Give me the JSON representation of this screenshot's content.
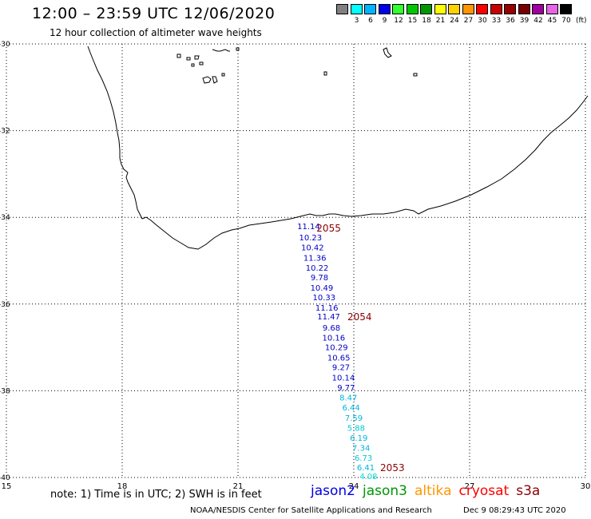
{
  "header": {
    "title": "12:00 – 23:59 UTC 12/06/2020",
    "subtitle": "12 hour collection of altimeter wave heights"
  },
  "legend": {
    "unit": "(ft)",
    "bins": [
      {
        "label": "",
        "color": "#808080"
      },
      {
        "label": "3",
        "color": "#00ffff"
      },
      {
        "label": "6",
        "color": "#00b4ff"
      },
      {
        "label": "9",
        "color": "#0000e6"
      },
      {
        "label": "12",
        "color": "#32ff32"
      },
      {
        "label": "15",
        "color": "#00c800"
      },
      {
        "label": "18",
        "color": "#009600"
      },
      {
        "label": "21",
        "color": "#ffff00"
      },
      {
        "label": "24",
        "color": "#ffd200"
      },
      {
        "label": "27",
        "color": "#ff9600"
      },
      {
        "label": "30",
        "color": "#ff0000"
      },
      {
        "label": "33",
        "color": "#c80000"
      },
      {
        "label": "36",
        "color": "#960000"
      },
      {
        "label": "39",
        "color": "#780000"
      },
      {
        "label": "42",
        "color": "#a000a0"
      },
      {
        "label": "45",
        "color": "#e664e6"
      },
      {
        "label": "70",
        "color": "#000000"
      }
    ]
  },
  "map": {
    "lon_range": [
      15,
      30
    ],
    "lat_range": [
      -40,
      -30
    ],
    "lon_ticks": [
      {
        "lon": 15,
        "label": "15"
      },
      {
        "lon": 18,
        "label": "18"
      },
      {
        "lon": 21,
        "label": "21"
      },
      {
        "lon": 24,
        "label": "24"
      },
      {
        "lon": 27,
        "label": "27"
      },
      {
        "lon": 30,
        "label": "30"
      }
    ],
    "lat_ticks": [
      {
        "lat": -30,
        "label": "-30"
      },
      {
        "lat": -32,
        "label": "-32"
      },
      {
        "lat": -34,
        "label": "-34"
      },
      {
        "lat": -36,
        "label": "-36"
      },
      {
        "lat": -38,
        "label": "-38"
      },
      {
        "lat": -40,
        "label": "-40"
      }
    ],
    "coastline_color": "#000000",
    "grid": "dotted",
    "track": [
      {
        "lon": 22.83,
        "lat": -34.2,
        "value": "11.14",
        "color": "#0000c8"
      },
      {
        "lon": 22.88,
        "lat": -34.46,
        "value": "10.23",
        "color": "#0000c8"
      },
      {
        "lon": 22.93,
        "lat": -34.69,
        "value": "10.42",
        "color": "#0000c8"
      },
      {
        "lon": 22.99,
        "lat": -34.93,
        "value": "11.36",
        "color": "#0000c8"
      },
      {
        "lon": 23.05,
        "lat": -35.16,
        "value": "10.22",
        "color": "#0000c8"
      },
      {
        "lon": 23.11,
        "lat": -35.38,
        "value": "9.78",
        "color": "#0000c8"
      },
      {
        "lon": 23.17,
        "lat": -35.62,
        "value": "10.49",
        "color": "#0000c8"
      },
      {
        "lon": 23.23,
        "lat": -35.84,
        "value": "10.33",
        "color": "#0000c8"
      },
      {
        "lon": 23.3,
        "lat": -36.08,
        "value": "11.16",
        "color": "#0000c8"
      },
      {
        "lon": 23.35,
        "lat": -36.28,
        "value": "11.47",
        "color": "#0000c8"
      },
      {
        "lon": 23.42,
        "lat": -36.54,
        "value": "9.68",
        "color": "#0000c8"
      },
      {
        "lon": 23.48,
        "lat": -36.77,
        "value": "10.16",
        "color": "#0000c8"
      },
      {
        "lon": 23.55,
        "lat": -36.99,
        "value": "10.29",
        "color": "#0000c8"
      },
      {
        "lon": 23.61,
        "lat": -37.23,
        "value": "10.65",
        "color": "#0000c8"
      },
      {
        "lon": 23.67,
        "lat": -37.45,
        "value": "9.27",
        "color": "#0000c8"
      },
      {
        "lon": 23.73,
        "lat": -37.69,
        "value": "10.14",
        "color": "#0000c8"
      },
      {
        "lon": 23.8,
        "lat": -37.92,
        "value": "9.77",
        "color": "#0000c8"
      },
      {
        "lon": 23.86,
        "lat": -38.15,
        "value": "8.47",
        "color": "#00b4dc"
      },
      {
        "lon": 23.93,
        "lat": -38.38,
        "value": "6.44",
        "color": "#00b4dc"
      },
      {
        "lon": 24.0,
        "lat": -38.62,
        "value": "7.59",
        "color": "#00b4dc"
      },
      {
        "lon": 24.06,
        "lat": -38.85,
        "value": "5.88",
        "color": "#00c8dc"
      },
      {
        "lon": 24.13,
        "lat": -39.08,
        "value": "6.19",
        "color": "#00b4dc"
      },
      {
        "lon": 24.19,
        "lat": -39.31,
        "value": "7.34",
        "color": "#00b4dc"
      },
      {
        "lon": 24.25,
        "lat": -39.54,
        "value": "6.73",
        "color": "#00c8dc"
      },
      {
        "lon": 24.31,
        "lat": -39.76,
        "value": "6.41",
        "color": "#00b4dc"
      },
      {
        "lon": 24.38,
        "lat": -39.96,
        "value": "4.08",
        "color": "#00dcdc"
      }
    ],
    "time_labels": [
      {
        "lon": 23.35,
        "lat": -34.25,
        "text": "2055",
        "color": "#8b0000"
      },
      {
        "lon": 24.15,
        "lat": -36.3,
        "text": "2054",
        "color": "#8b0000"
      },
      {
        "lon": 25.0,
        "lat": -39.78,
        "text": "2053",
        "color": "#8b0000"
      }
    ]
  },
  "footer": {
    "note": "note:  1) Time is in UTC;  2) SWH is in feet",
    "satellites": [
      {
        "name": "jason2",
        "color": "#0000e6"
      },
      {
        "name": "jason3",
        "color": "#009600"
      },
      {
        "name": "altika",
        "color": "#ff9600"
      },
      {
        "name": "cryosat",
        "color": "#ff0000"
      },
      {
        "name": "s3a",
        "color": "#8b0000"
      }
    ],
    "credit": "NOAA/NESDIS Center for Satellite Applications and Research",
    "timestamp": "Dec  9 08:29:43 UTC 2020"
  }
}
